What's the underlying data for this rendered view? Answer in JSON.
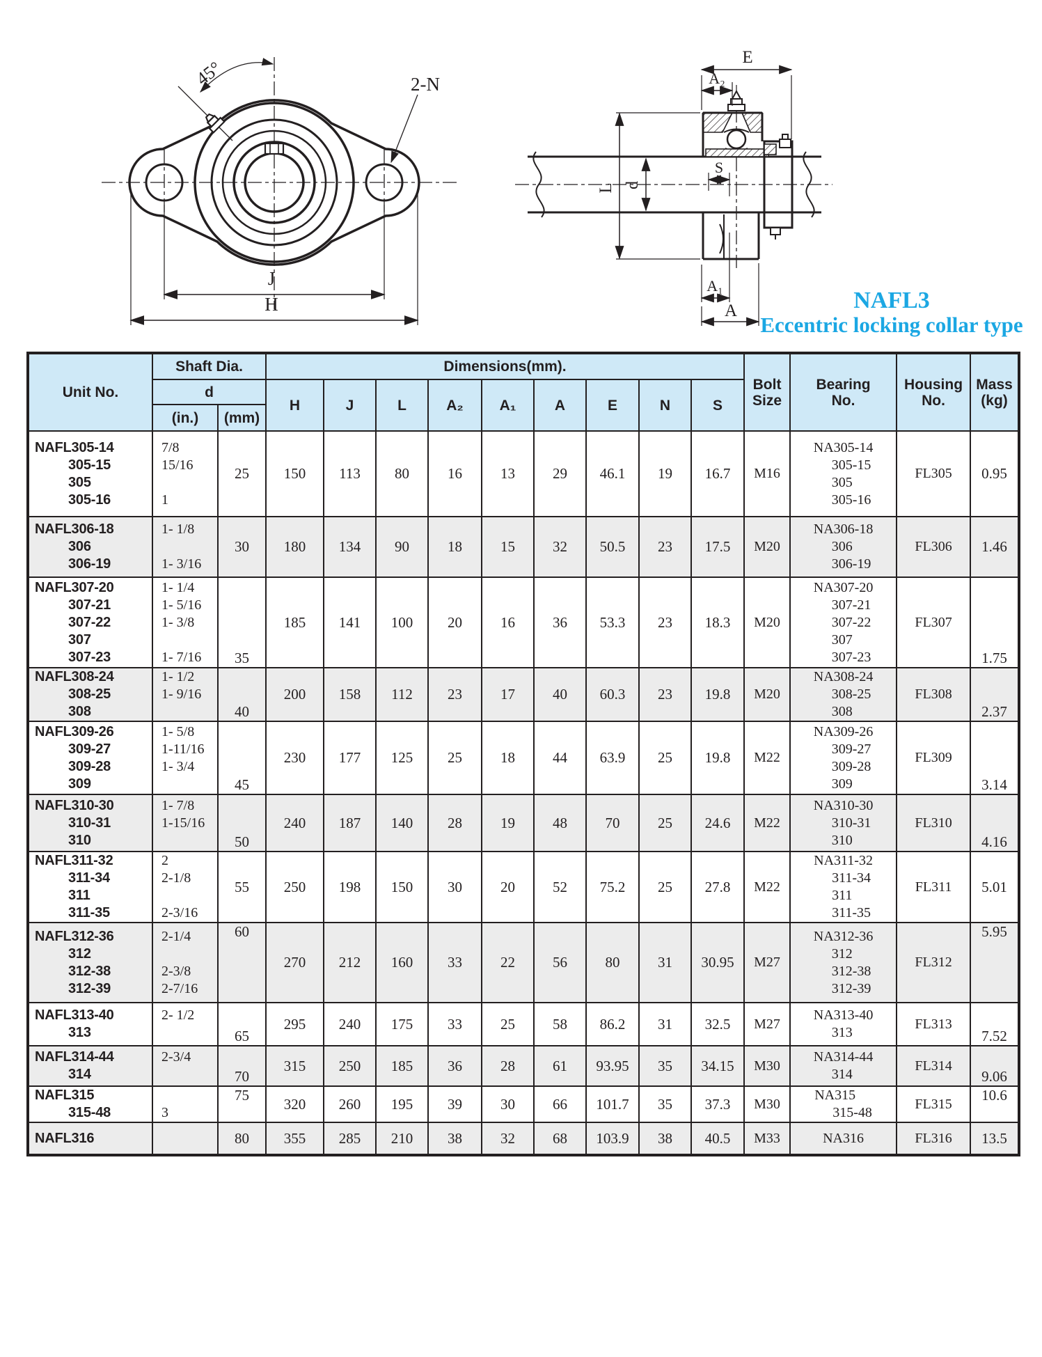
{
  "title": {
    "line1": "NAFL3",
    "line2": "Eccentric locking collar type"
  },
  "colors": {
    "accent": "#1BA7E3",
    "line": "#231F20",
    "table_header_bg": "#CFE9F7",
    "alt_row_bg": "#ECECEC"
  },
  "drawings": {
    "front_view": {
      "angle": "45°",
      "bolt_holes": "2-N",
      "dim_j": "J",
      "dim_h": "H"
    },
    "side_view": {
      "dim_e": "E",
      "dim_a2": "A₂",
      "dim_l": "L",
      "dim_d": "d",
      "dim_s": "S",
      "dim_a1": "A₁",
      "dim_a": "A"
    }
  },
  "table": {
    "headers": {
      "unit_no": "Unit No.",
      "shaft_dia": "Shaft Dia.",
      "d": "d",
      "in": "(in.)",
      "mm": "(mm)",
      "dimensions": "Dimensions(mm).",
      "dims": [
        "H",
        "J",
        "L",
        "A₂",
        "A₁",
        "A",
        "E",
        "N",
        "S"
      ],
      "bolt_size": "Bolt Size",
      "bearing_no": "Bearing No.",
      "housing_no": "Housing No.",
      "mass": "Mass (kg)"
    },
    "rows": [
      {
        "unit": [
          "NAFL305-14",
          "305-15",
          "305",
          "305-16"
        ],
        "in": [
          "7/8",
          "15/16",
          "",
          "1"
        ],
        "mm": "25",
        "mm_pos": "mid",
        "dims": [
          "150",
          "113",
          "80",
          "16",
          "13",
          "29",
          "46.1",
          "19",
          "16.7"
        ],
        "bolt": "M16",
        "bearing": [
          "NA305-14",
          "305-15",
          "305",
          "305-16"
        ],
        "housing": "FL305",
        "mass": "0.95",
        "mass_pos": "mid",
        "shaded": false
      },
      {
        "unit": [
          "NAFL306-18",
          "306",
          "306-19"
        ],
        "in": [
          "1- 1/8",
          "",
          "1- 3/16"
        ],
        "mm": "30",
        "mm_pos": "mid",
        "dims": [
          "180",
          "134",
          "90",
          "18",
          "15",
          "32",
          "50.5",
          "23",
          "17.5"
        ],
        "bolt": "M20",
        "bearing": [
          "NA306-18",
          "306",
          "306-19"
        ],
        "housing": "FL306",
        "mass": "1.46",
        "mass_pos": "mid",
        "shaded": true
      },
      {
        "unit": [
          "NAFL307-20",
          "307-21",
          "307-22",
          "307",
          "307-23"
        ],
        "in": [
          "1- 1/4",
          "1- 5/16",
          "1- 3/8",
          "",
          "1- 7/16"
        ],
        "mm": "35",
        "mm_pos": "bot",
        "dims": [
          "185",
          "141",
          "100",
          "20",
          "16",
          "36",
          "53.3",
          "23",
          "18.3"
        ],
        "bolt": "M20",
        "bearing": [
          "NA307-20",
          "307-21",
          "307-22",
          "307",
          "307-23"
        ],
        "housing": "FL307",
        "mass": "1.75",
        "mass_pos": "bot",
        "shaded": false
      },
      {
        "unit": [
          "NAFL308-24",
          "308-25",
          "308"
        ],
        "in": [
          "1- 1/2",
          "1- 9/16",
          ""
        ],
        "mm": "40",
        "mm_pos": "bot",
        "dims": [
          "200",
          "158",
          "112",
          "23",
          "17",
          "40",
          "60.3",
          "23",
          "19.8"
        ],
        "bolt": "M20",
        "bearing": [
          "NA308-24",
          "308-25",
          "308"
        ],
        "housing": "FL308",
        "mass": "2.37",
        "mass_pos": "bot",
        "shaded": true
      },
      {
        "unit": [
          "NAFL309-26",
          "309-27",
          "309-28",
          "309"
        ],
        "in": [
          "1- 5/8",
          "1-11/16",
          "1- 3/4",
          ""
        ],
        "mm": "45",
        "mm_pos": "bot",
        "dims": [
          "230",
          "177",
          "125",
          "25",
          "18",
          "44",
          "63.9",
          "25",
          "19.8"
        ],
        "bolt": "M22",
        "bearing": [
          "NA309-26",
          "309-27",
          "309-28",
          "309"
        ],
        "housing": "FL309",
        "mass": "3.14",
        "mass_pos": "bot",
        "shaded": false
      },
      {
        "unit": [
          "NAFL310-30",
          "310-31",
          "310"
        ],
        "in": [
          "1- 7/8",
          "1-15/16",
          ""
        ],
        "mm": "50",
        "mm_pos": "bot",
        "dims": [
          "240",
          "187",
          "140",
          "28",
          "19",
          "48",
          "70",
          "25",
          "24.6"
        ],
        "bolt": "M22",
        "bearing": [
          "NA310-30",
          "310-31",
          "310"
        ],
        "housing": "FL310",
        "mass": "4.16",
        "mass_pos": "bot",
        "shaded": true
      },
      {
        "unit": [
          "NAFL311-32",
          "311-34",
          "311",
          "311-35"
        ],
        "in": [
          "2",
          "2-1/8",
          "",
          "2-3/16"
        ],
        "mm": "55",
        "mm_pos": "mid",
        "dims": [
          "250",
          "198",
          "150",
          "30",
          "20",
          "52",
          "75.2",
          "25",
          "27.8"
        ],
        "bolt": "M22",
        "bearing": [
          "NA311-32",
          "311-34",
          "311",
          "311-35"
        ],
        "housing": "FL311",
        "mass": "5.01",
        "mass_pos": "mid",
        "shaded": false
      },
      {
        "unit": [
          "NAFL312-36",
          "312",
          "312-38",
          "312-39"
        ],
        "in": [
          "2-1/4",
          "",
          "2-3/8",
          "2-7/16"
        ],
        "mm": "60",
        "mm_pos": "top",
        "dims": [
          "270",
          "212",
          "160",
          "33",
          "22",
          "56",
          "80",
          "31",
          "30.95"
        ],
        "bolt": "M27",
        "bearing": [
          "NA312-36",
          "312",
          "312-38",
          "312-39"
        ],
        "housing": "FL312",
        "mass": "5.95",
        "mass_pos": "top",
        "shaded": true
      },
      {
        "unit": [
          "NAFL313-40",
          "313"
        ],
        "in": [
          "2- 1/2",
          ""
        ],
        "mm": "65",
        "mm_pos": "bot",
        "dims": [
          "295",
          "240",
          "175",
          "33",
          "25",
          "58",
          "86.2",
          "31",
          "32.5"
        ],
        "bolt": "M27",
        "bearing": [
          "NA313-40",
          "313"
        ],
        "housing": "FL313",
        "mass": "7.52",
        "mass_pos": "bot",
        "shaded": false
      },
      {
        "unit": [
          "NAFL314-44",
          "314"
        ],
        "in": [
          "2-3/4",
          ""
        ],
        "mm": "70",
        "mm_pos": "bot",
        "dims": [
          "315",
          "250",
          "185",
          "36",
          "28",
          "61",
          "93.95",
          "35",
          "34.15"
        ],
        "bolt": "M30",
        "bearing": [
          "NA314-44",
          "314"
        ],
        "housing": "FL314",
        "mass": "9.06",
        "mass_pos": "bot",
        "shaded": true
      },
      {
        "unit": [
          "NAFL315",
          "315-48"
        ],
        "in": [
          "",
          "3"
        ],
        "mm": "75",
        "mm_pos": "top",
        "dims": [
          "320",
          "260",
          "195",
          "39",
          "30",
          "66",
          "101.7",
          "35",
          "37.3"
        ],
        "bolt": "M30",
        "bearing": [
          "NA315",
          "315-48"
        ],
        "housing": "FL315",
        "mass": "10.6",
        "mass_pos": "top",
        "shaded": false
      },
      {
        "unit": [
          "NAFL316"
        ],
        "in": [
          ""
        ],
        "mm": "80",
        "mm_pos": "mid",
        "dims": [
          "355",
          "285",
          "210",
          "38",
          "32",
          "68",
          "103.9",
          "38",
          "40.5"
        ],
        "bolt": "M33",
        "bearing": [
          "NA316"
        ],
        "housing": "FL316",
        "mass": "13.5",
        "mass_pos": "mid",
        "shaded": true
      }
    ]
  }
}
